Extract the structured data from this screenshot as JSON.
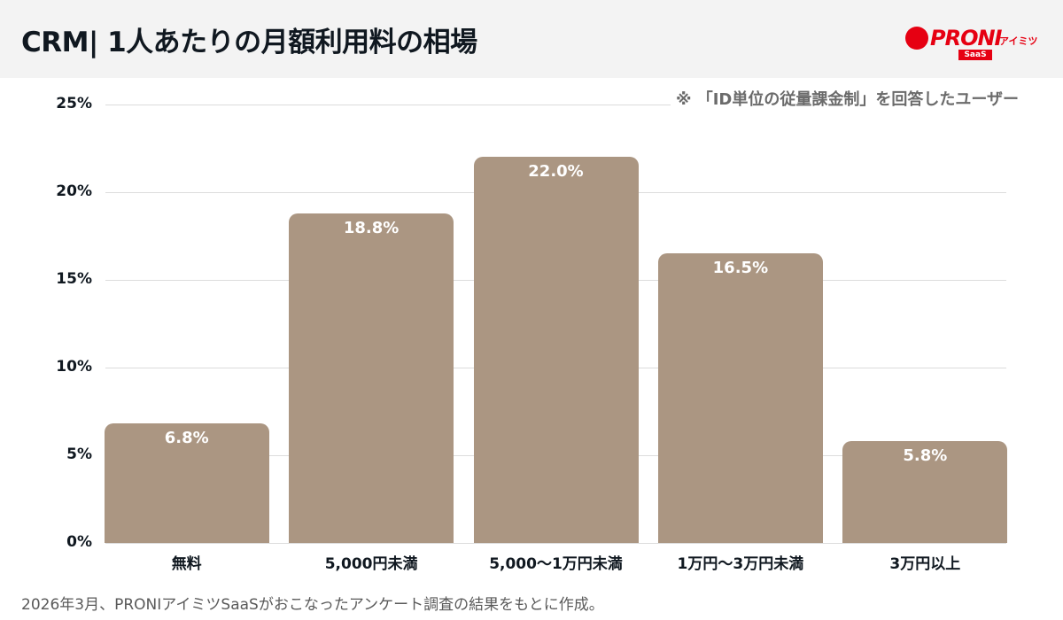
{
  "header": {
    "title": "CRM| 1人あたりの月額利用料の相場",
    "logo": {
      "name": "PRONI",
      "sub": "アイミツ",
      "badge": "SaaS",
      "brand_color": "#e60012"
    }
  },
  "note": "※ 「ID単位の従量課金制」を回答したユーザー",
  "footer": "2026年3月、PRONIアイミツSaaSがおこなったアンケート調査の結果をもとに作成。",
  "colors": {
    "bar": "#ab9682",
    "grid": "#dcdcdc",
    "text": "#101820"
  },
  "chart_data": {
    "type": "bar",
    "title": "CRM| 1人あたりの月額利用料の相場",
    "categories": [
      "無料",
      "5,000円未満",
      "5,000〜1万円未満",
      "1万円〜3万円未満",
      "3万円以上"
    ],
    "values": [
      6.8,
      18.8,
      22.0,
      16.5,
      5.8
    ],
    "value_labels": [
      "6.8%",
      "18.8%",
      "22.0%",
      "16.5%",
      "5.8%"
    ],
    "xlabel": "",
    "ylabel": "",
    "ylim": [
      0,
      25
    ],
    "yticks": [
      "0%",
      "5%",
      "10%",
      "15%",
      "20%",
      "25%"
    ],
    "grid": true,
    "legend": "none",
    "annotation": "※ 「ID単位の従量課金制」を回答したユーザー"
  }
}
